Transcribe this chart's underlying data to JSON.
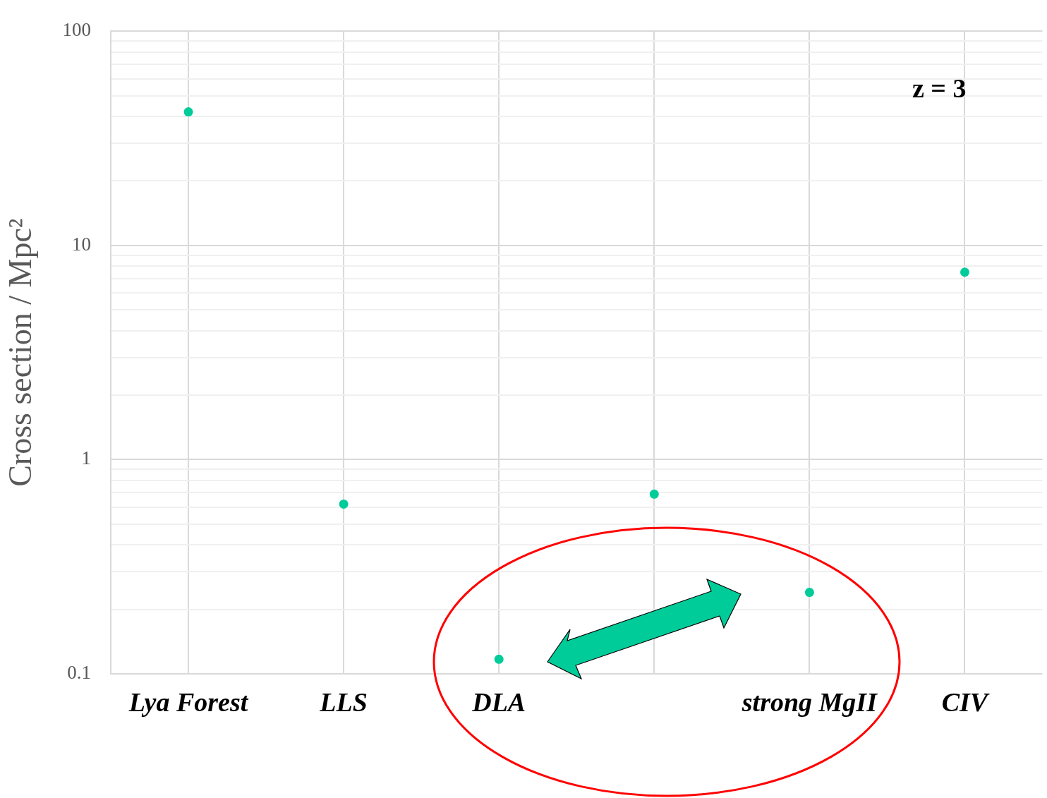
{
  "chart_data": {
    "type": "scatter",
    "ylabel": "Cross section / Mpc²",
    "categories": [
      "Lya Forest",
      "LLS",
      "DLA",
      null,
      "strong MgII",
      "CIV"
    ],
    "series": [
      {
        "color": "#00cc99",
        "values": [
          42,
          0.62,
          0.117,
          0.69,
          0.24,
          7.5
        ]
      }
    ],
    "log": "y",
    "ylim": [
      0.1,
      100
    ],
    "yticks": [
      0.1,
      {
        "value": 0.2,
        "label": null
      },
      {
        "value": 0.3,
        "label": null
      },
      {
        "value": 0.4,
        "label": null
      },
      {
        "value": 0.5,
        "label": null
      },
      {
        "value": 0.6,
        "label": null
      },
      {
        "value": 0.7,
        "label": null
      },
      {
        "value": 0.8,
        "label": null
      },
      {
        "value": 0.9,
        "label": null
      },
      1,
      {
        "value": 2,
        "label": null
      },
      {
        "value": 3,
        "label": null
      },
      {
        "value": 4,
        "label": null
      },
      {
        "value": 5,
        "label": null
      },
      {
        "value": 6,
        "label": null
      },
      {
        "value": 7,
        "label": null
      },
      {
        "value": 8,
        "label": null
      },
      {
        "value": 9,
        "label": null
      },
      10,
      {
        "value": 20,
        "label": null
      },
      {
        "value": 30,
        "label": null
      },
      {
        "value": 40,
        "label": null
      },
      {
        "value": 50,
        "label": null
      },
      {
        "value": 60,
        "label": null
      },
      {
        "value": 70,
        "label": null
      },
      {
        "value": 80,
        "label": null
      },
      {
        "value": 90,
        "label": null
      },
      100
    ],
    "grid": true,
    "marker": "circle",
    "legend": false,
    "annotations": [
      "z = 3"
    ]
  }
}
